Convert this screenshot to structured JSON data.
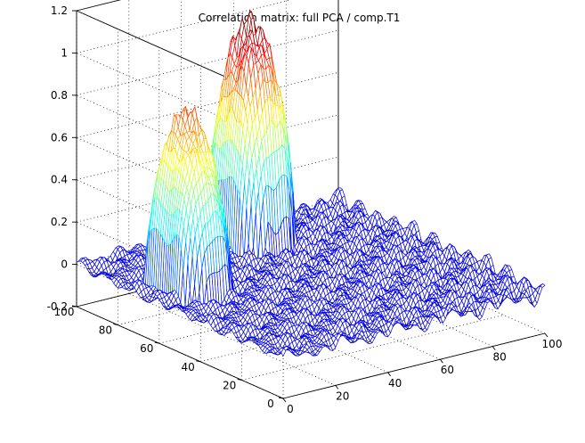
{
  "chart_data": {
    "type": "surface",
    "title": "Correlation matrix: full PCA / comp.T1",
    "xlabel": "",
    "ylabel": "",
    "zlabel": "",
    "x_ticks": [
      "0",
      "20",
      "40",
      "60",
      "80",
      "100"
    ],
    "y_ticks": [
      "0",
      "20",
      "40",
      "60",
      "80",
      "100"
    ],
    "z_ticks": [
      "-0.2",
      "0",
      "0.2",
      "0.4",
      "0.6",
      "0.8",
      "1",
      "1.2"
    ],
    "xlim": [
      0,
      100
    ],
    "ylim": [
      0,
      100
    ],
    "zlim": [
      -0.2,
      1.2
    ],
    "grid": true,
    "colormap": "jet",
    "mesh_resolution": 100,
    "baseline_noise_amplitude": 0.04,
    "peaks": [
      {
        "x_center": 15,
        "y_center": 65,
        "x_halfwidth": 10,
        "y_halfwidth": 13,
        "height": 0.8
      },
      {
        "x_center": 55,
        "y_center": 85,
        "x_halfwidth": 11,
        "y_halfwidth": 12,
        "height": 1.05
      }
    ]
  }
}
